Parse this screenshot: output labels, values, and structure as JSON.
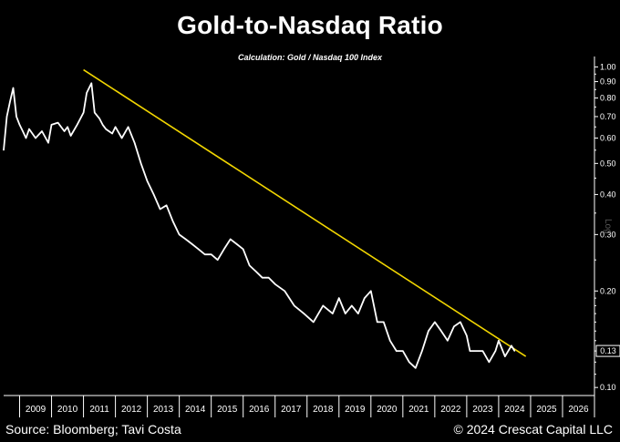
{
  "chart_data": {
    "type": "line",
    "title": "Gold-to-Nasdaq Ratio",
    "subtitle": "Calculation: Gold / Nasdaq 100 Index",
    "scale_label": "Log",
    "y_scale": "log",
    "ylim": [
      0.095,
      1.05
    ],
    "xlim": [
      2008.5,
      2027.0
    ],
    "y_ticks": [
      1.0,
      0.9,
      0.8,
      0.7,
      0.6,
      0.5,
      0.4,
      0.3,
      0.2,
      0.1
    ],
    "y_tick_labels": [
      "1.00",
      "0.90",
      "0.80",
      "0.70",
      "0.60",
      "0.50",
      "0.40",
      "0.30",
      "0.20",
      "0.10"
    ],
    "x_ticks": [
      "2009",
      "2010",
      "2011",
      "2012",
      "2013",
      "2014",
      "2015",
      "2016",
      "2017",
      "2018",
      "2019",
      "2020",
      "2021",
      "2022",
      "2023",
      "2024",
      "2025",
      "2026"
    ],
    "last_value_label": "0.13",
    "series": [
      {
        "name": "",
        "color": "#ffffff",
        "x": [
          2008.5,
          2008.6,
          2008.7,
          2008.8,
          2008.9,
          2009.0,
          2009.1,
          2009.2,
          2009.3,
          2009.5,
          2009.7,
          2009.9,
          2010.0,
          2010.2,
          2010.4,
          2010.5,
          2010.6,
          2010.8,
          2011.0,
          2011.1,
          2011.25,
          2011.35,
          2011.5,
          2011.6,
          2011.7,
          2011.9,
          2012.0,
          2012.2,
          2012.4,
          2012.6,
          2012.8,
          2013.0,
          2013.2,
          2013.4,
          2013.6,
          2013.8,
          2014.0,
          2014.2,
          2014.4,
          2014.6,
          2014.8,
          2015.0,
          2015.2,
          2015.4,
          2015.6,
          2015.8,
          2016.0,
          2016.2,
          2016.4,
          2016.6,
          2016.8,
          2017.0,
          2017.3,
          2017.6,
          2017.9,
          2018.2,
          2018.5,
          2018.8,
          2019.0,
          2019.2,
          2019.4,
          2019.6,
          2019.8,
          2020.0,
          2020.2,
          2020.4,
          2020.6,
          2020.8,
          2021.0,
          2021.2,
          2021.4,
          2021.6,
          2021.8,
          2022.0,
          2022.2,
          2022.4,
          2022.6,
          2022.8,
          2023.0,
          2023.1,
          2023.3,
          2023.5,
          2023.7,
          2023.9,
          2024.0,
          2024.2,
          2024.4,
          2024.5
        ],
        "values": [
          0.55,
          0.7,
          0.78,
          0.86,
          0.7,
          0.66,
          0.63,
          0.6,
          0.64,
          0.6,
          0.63,
          0.58,
          0.66,
          0.67,
          0.63,
          0.65,
          0.61,
          0.66,
          0.72,
          0.83,
          0.89,
          0.72,
          0.69,
          0.66,
          0.64,
          0.62,
          0.65,
          0.6,
          0.65,
          0.58,
          0.5,
          0.44,
          0.4,
          0.36,
          0.37,
          0.33,
          0.3,
          0.29,
          0.28,
          0.27,
          0.26,
          0.26,
          0.25,
          0.27,
          0.29,
          0.28,
          0.27,
          0.24,
          0.23,
          0.22,
          0.22,
          0.21,
          0.2,
          0.18,
          0.17,
          0.16,
          0.18,
          0.17,
          0.19,
          0.17,
          0.18,
          0.17,
          0.19,
          0.2,
          0.16,
          0.16,
          0.14,
          0.13,
          0.13,
          0.12,
          0.115,
          0.13,
          0.15,
          0.16,
          0.15,
          0.14,
          0.155,
          0.16,
          0.145,
          0.13,
          0.13,
          0.13,
          0.12,
          0.13,
          0.14,
          0.125,
          0.135,
          0.13
        ]
      }
    ],
    "trendline": {
      "color": "#f2d600",
      "x": [
        2011.0,
        2024.85
      ],
      "values": [
        0.98,
        0.125
      ]
    }
  },
  "footer": {
    "source": "Source: Bloomberg; Tavi Costa",
    "copyright": "© 2024 Crescat Capital LLC"
  }
}
